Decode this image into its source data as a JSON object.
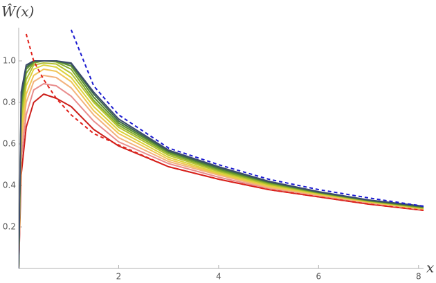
{
  "chart_data": {
    "type": "line",
    "y_label": "Ŵ(x)",
    "x_label": "x",
    "x": [
      0,
      0.05,
      0.15,
      0.3,
      0.5,
      0.75,
      1.05,
      1.5,
      2,
      3,
      4,
      5,
      6,
      7,
      8.1
    ],
    "xlim": [
      0,
      8.1
    ],
    "ylim": [
      0,
      1.16
    ],
    "xticks": [
      2,
      4,
      6,
      8
    ],
    "yticks": [
      0.2,
      0.4,
      0.6,
      0.8,
      {
        "value": 1,
        "label": "1.0"
      }
    ],
    "grid": false,
    "series": [
      {
        "color": "#cc1f1a",
        "dashed": false,
        "values": [
          0,
          0.45,
          0.68,
          0.8,
          0.84,
          0.82,
          0.78,
          0.67,
          0.59,
          0.49,
          0.43,
          0.38,
          0.345,
          0.31,
          0.28
        ]
      },
      {
        "color": "#e88c8c",
        "dashed": false,
        "values": [
          0,
          0.52,
          0.74,
          0.86,
          0.89,
          0.88,
          0.83,
          0.71,
          0.61,
          0.505,
          0.44,
          0.385,
          0.35,
          0.315,
          0.283
        ]
      },
      {
        "color": "#f3b27c",
        "dashed": false,
        "values": [
          0,
          0.58,
          0.8,
          0.9,
          0.93,
          0.92,
          0.87,
          0.74,
          0.63,
          0.515,
          0.45,
          0.39,
          0.353,
          0.318,
          0.285
        ]
      },
      {
        "color": "#f0c456",
        "dashed": false,
        "values": [
          0,
          0.63,
          0.84,
          0.93,
          0.96,
          0.95,
          0.9,
          0.76,
          0.65,
          0.525,
          0.455,
          0.395,
          0.356,
          0.32,
          0.287
        ]
      },
      {
        "color": "#dcd23a",
        "dashed": false,
        "values": [
          0,
          0.68,
          0.88,
          0.96,
          0.98,
          0.97,
          0.92,
          0.78,
          0.665,
          0.535,
          0.46,
          0.4,
          0.359,
          0.322,
          0.289
        ]
      },
      {
        "color": "#b4c232",
        "dashed": false,
        "values": [
          0,
          0.72,
          0.91,
          0.98,
          0.99,
          0.985,
          0.94,
          0.8,
          0.68,
          0.545,
          0.467,
          0.405,
          0.362,
          0.324,
          0.291
        ]
      },
      {
        "color": "#84ac2e",
        "dashed": false,
        "values": [
          0,
          0.76,
          0.94,
          0.99,
          1,
          0.995,
          0.96,
          0.81,
          0.69,
          0.553,
          0.473,
          0.41,
          0.364,
          0.326,
          0.293
        ]
      },
      {
        "color": "#5c8e30",
        "dashed": false,
        "values": [
          0,
          0.79,
          0.96,
          0.995,
          1,
          1,
          0.975,
          0.825,
          0.7,
          0.56,
          0.479,
          0.414,
          0.366,
          0.327,
          0.295
        ]
      },
      {
        "color": "#3e6a48",
        "dashed": false,
        "values": [
          0,
          0.82,
          0.97,
          1,
          1,
          1,
          0.985,
          0.84,
          0.71,
          0.565,
          0.485,
          0.417,
          0.368,
          0.329,
          0.297
        ]
      },
      {
        "color": "#3b4a6b",
        "dashed": false,
        "values": [
          0,
          0.85,
          0.98,
          1,
          1,
          1,
          0.99,
          0.85,
          0.72,
          0.57,
          0.49,
          0.42,
          0.37,
          0.33,
          0.3
        ]
      },
      {
        "color": "#e0201a",
        "dashed": true,
        "values": [
          null,
          null,
          1.13,
          1,
          0.91,
          0.82,
          0.74,
          0.65,
          0.595,
          0.49,
          0.43,
          0.38,
          0.345,
          0.31,
          0.28
        ]
      },
      {
        "color": "#1a1ad0",
        "dashed": true,
        "values": [
          null,
          null,
          null,
          null,
          null,
          null,
          1.15,
          0.88,
          0.74,
          0.58,
          0.5,
          0.43,
          0.38,
          0.34,
          0.3
        ]
      }
    ]
  }
}
